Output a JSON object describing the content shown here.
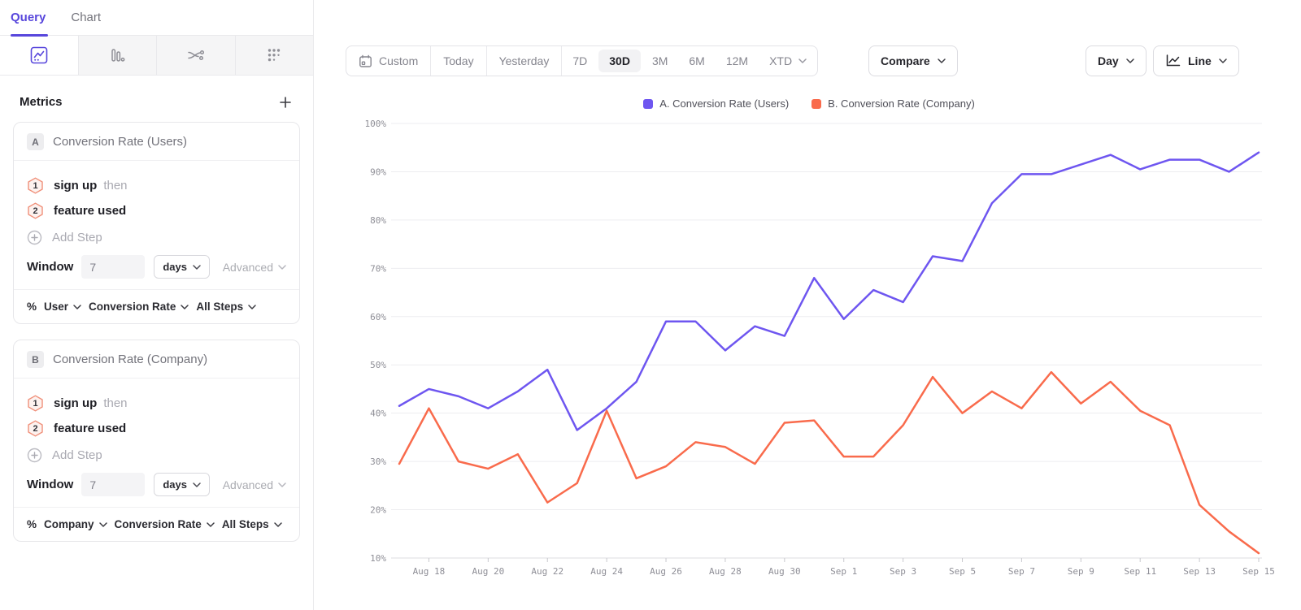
{
  "left_panel": {
    "tabs": [
      {
        "label": "Query",
        "active": true
      },
      {
        "label": "Chart",
        "active": false
      }
    ],
    "chart_type_tabs": [
      "segmentation-line-chart",
      "bar-chart",
      "flows",
      "retention-dots"
    ],
    "metrics": {
      "title": "Metrics",
      "cards": [
        {
          "badge": "A",
          "title": "Conversion Rate (Users)",
          "steps": [
            {
              "num": "1",
              "event": "sign up",
              "suffix": "then"
            },
            {
              "num": "2",
              "event": "feature used",
              "suffix": ""
            }
          ],
          "add_step_label": "Add Step",
          "window_label": "Window",
          "window_value": "7",
          "window_unit": "days",
          "advanced_label": "Advanced",
          "footer": {
            "pct": "%",
            "subject": "User",
            "metric": "Conversion Rate",
            "steps": "All Steps"
          }
        },
        {
          "badge": "B",
          "title": "Conversion Rate (Company)",
          "steps": [
            {
              "num": "1",
              "event": "sign up",
              "suffix": "then"
            },
            {
              "num": "2",
              "event": "feature used",
              "suffix": ""
            }
          ],
          "add_step_label": "Add Step",
          "window_label": "Window",
          "window_value": "7",
          "window_unit": "days",
          "advanced_label": "Advanced",
          "footer": {
            "pct": "%",
            "subject": "Company",
            "metric": "Conversion Rate",
            "steps": "All Steps"
          }
        }
      ]
    }
  },
  "toolbar": {
    "ranges": [
      {
        "label": "Custom"
      },
      {
        "label": "Today"
      },
      {
        "label": "Yesterday"
      },
      {
        "label": "7D"
      },
      {
        "label": "30D",
        "active": true
      },
      {
        "label": "3M"
      },
      {
        "label": "6M"
      },
      {
        "label": "12M"
      },
      {
        "label": "XTD"
      }
    ],
    "compare_label": "Compare",
    "granularity_label": "Day",
    "chart_style_label": "Line"
  },
  "colors": {
    "accent_purple": "#5847DC",
    "series_a": "#6E56F0",
    "series_b": "#F96B4C",
    "grid": "#EDEDF0",
    "axis_text": "#8E8E96"
  },
  "chart_data": {
    "type": "line",
    "x": [
      "Aug 17",
      "Aug 18",
      "Aug 19",
      "Aug 20",
      "Aug 21",
      "Aug 22",
      "Aug 23",
      "Aug 24",
      "Aug 25",
      "Aug 26",
      "Aug 27",
      "Aug 28",
      "Aug 29",
      "Aug 30",
      "Aug 31",
      "Sep 1",
      "Sep 2",
      "Sep 3",
      "Sep 4",
      "Sep 5",
      "Sep 6",
      "Sep 7",
      "Sep 8",
      "Sep 9",
      "Sep 10",
      "Sep 11",
      "Sep 12",
      "Sep 13",
      "Sep 14",
      "Sep 15"
    ],
    "x_label_start_index": 1,
    "x_label_every": 2,
    "series": [
      {
        "name": "A. Conversion Rate (Users)",
        "color": "#6E56F0",
        "values": [
          41.5,
          45,
          43.5,
          41,
          44.5,
          49,
          36.5,
          41,
          46.5,
          59,
          59,
          53,
          58,
          56,
          68,
          59.5,
          65.5,
          63,
          72.5,
          71.5,
          83.5,
          89.5,
          89.5,
          91.5,
          93.5,
          90.5,
          92.5,
          92.5,
          90,
          94
        ]
      },
      {
        "name": "B. Conversion Rate (Company)",
        "color": "#F96B4C",
        "values": [
          29.5,
          41,
          30,
          28.5,
          31.5,
          21.5,
          25.5,
          40.5,
          26.5,
          29,
          34,
          33,
          29.5,
          38,
          38.5,
          31,
          31,
          37.5,
          47.5,
          40,
          44.5,
          41,
          48.5,
          42,
          46.5,
          40.5,
          37.5,
          21,
          15.5,
          11
        ]
      }
    ],
    "y_unit": "%",
    "ylim": [
      10,
      100
    ],
    "yticks": [
      10,
      20,
      30,
      40,
      50,
      60,
      70,
      80,
      90,
      100
    ],
    "grid": "horizontal",
    "legend_position": "top"
  }
}
